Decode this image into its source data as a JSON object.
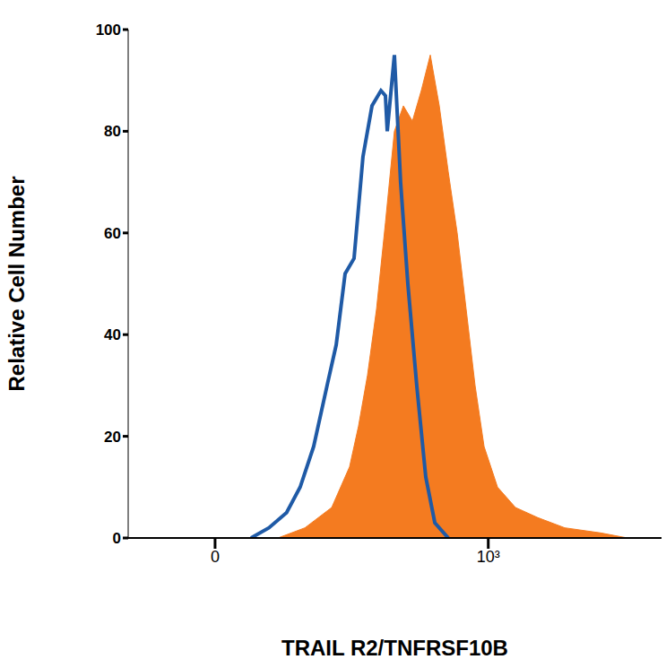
{
  "chart_data": {
    "type": "histogram",
    "xlabel": "TRAIL R2/TNFRSF10B",
    "ylabel": "Relative Cell Number",
    "log": "x",
    "grid": false,
    "xlim": [
      -8,
      80000
    ],
    "xticks": [
      {
        "value": 0,
        "label": "0"
      },
      {
        "value": 1000,
        "label": "10³"
      }
    ],
    "ylim": [
      0,
      100
    ],
    "yticks": [
      0,
      20,
      40,
      60,
      80,
      100
    ],
    "series": [
      {
        "type": "line",
        "color": "#1f5aa6",
        "x": [
          1.48,
          2.9,
          5.1,
          7.6,
          11.1,
          16,
          20.4,
          25.8,
          32.6,
          41.1,
          51.9,
          65.4,
          73.3,
          76.8,
          92.2,
          108,
          130,
          163,
          205,
          258,
          363
        ],
        "values": [
          0,
          2,
          5,
          10,
          18,
          30,
          38,
          52,
          55,
          75,
          85,
          88,
          87,
          80,
          95,
          70,
          50,
          30,
          12,
          3,
          0
        ]
      },
      {
        "type": "area",
        "color": "#f47b20",
        "x": [
          3.9,
          8.7,
          18.1,
          29,
          36.6,
          46.2,
          58.3,
          73.3,
          92.2,
          116,
          146,
          183,
          230,
          289,
          363,
          455,
          571,
          716,
          899,
          1264,
          1990,
          3505,
          6929,
          17150,
          33900
        ],
        "values": [
          0,
          2,
          6,
          14,
          22,
          32,
          45,
          62,
          80,
          85,
          82,
          88,
          95,
          85,
          72,
          60,
          45,
          30,
          18,
          10,
          6,
          4,
          2,
          1,
          0
        ]
      }
    ]
  }
}
